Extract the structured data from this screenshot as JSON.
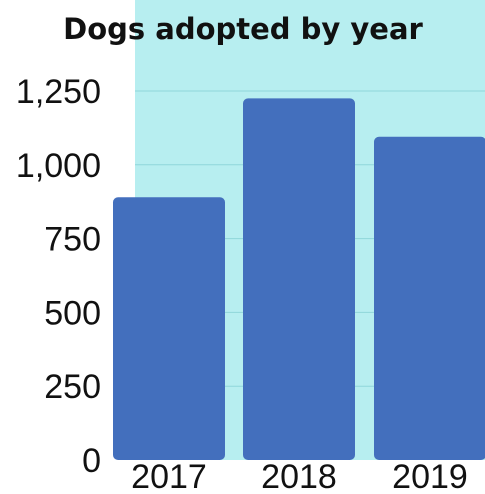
{
  "chart_data": {
    "type": "bar",
    "title": "Dogs adopted by year",
    "xlabel": "",
    "ylabel": "",
    "categories": [
      "2017",
      "2018",
      "2019"
    ],
    "values": [
      890,
      1225,
      1095
    ],
    "ylim": [
      0,
      1300
    ],
    "yticks": [
      0,
      250,
      500,
      750,
      1000,
      1250
    ],
    "ytick_labels": [
      "0",
      "250",
      "500",
      "750",
      "1,000",
      "1,250"
    ],
    "grid": true,
    "colors": {
      "bar": "#436fbd",
      "plot_background": "#b7eef0",
      "grid": "#8fd6da"
    }
  }
}
